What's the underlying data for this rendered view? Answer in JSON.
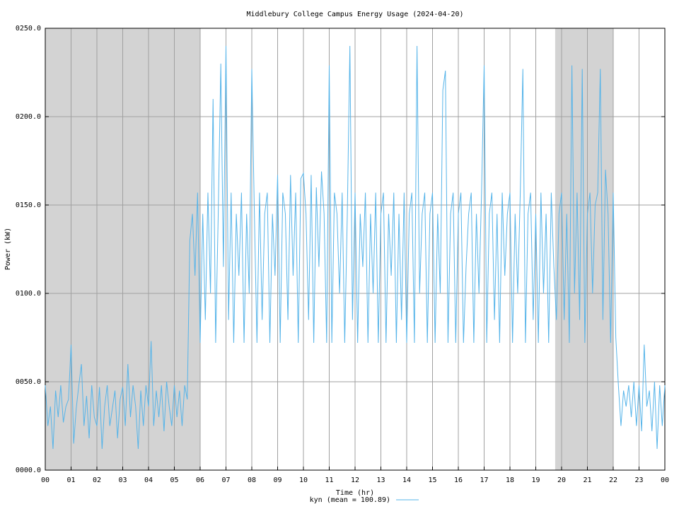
{
  "chart_data": {
    "type": "line",
    "title": "Middlebury College Campus Energy Usage (2024-04-20)",
    "xlabel": "Time (hr)",
    "ylabel": "Power (kW)",
    "xlim": [
      0,
      24
    ],
    "ylim": [
      0,
      250
    ],
    "xticks": [
      {
        "value": 0,
        "label": "00"
      },
      {
        "value": 1,
        "label": "01"
      },
      {
        "value": 2,
        "label": "02"
      },
      {
        "value": 3,
        "label": "03"
      },
      {
        "value": 4,
        "label": "04"
      },
      {
        "value": 5,
        "label": "05"
      },
      {
        "value": 6,
        "label": "06"
      },
      {
        "value": 7,
        "label": "07"
      },
      {
        "value": 8,
        "label": "08"
      },
      {
        "value": 9,
        "label": "09"
      },
      10,
      11,
      12,
      13,
      14,
      15,
      16,
      17,
      18,
      19,
      20,
      21,
      22,
      23,
      {
        "value": 24,
        "label": "00"
      }
    ],
    "yticks": [
      {
        "value": 0,
        "label": "0000.0"
      },
      {
        "value": 50,
        "label": "0050.0"
      },
      {
        "value": 100,
        "label": "0100.0"
      },
      {
        "value": 150,
        "label": "0150.0"
      },
      {
        "value": 200,
        "label": "0200.0"
      },
      {
        "value": 250,
        "label": "0250.0"
      }
    ],
    "grid": true,
    "shaded_regions": [
      [
        0,
        6
      ],
      [
        19.75,
        22
      ]
    ],
    "shade_color": "#d3d3d3",
    "legend": "bottom",
    "x": [
      0,
      0.1,
      0.2,
      0.3,
      0.4,
      0.5,
      0.6,
      0.7,
      0.8,
      0.9,
      1,
      1.1,
      1.2,
      1.3,
      1.4,
      1.5,
      1.6,
      1.7,
      1.8,
      1.9,
      2,
      2.1,
      2.2,
      2.3,
      2.4,
      2.5,
      2.6,
      2.7,
      2.8,
      2.9,
      3,
      3.1,
      3.2,
      3.3,
      3.4,
      3.5,
      3.6,
      3.7,
      3.8,
      3.9,
      4,
      4.1,
      4.2,
      4.3,
      4.4,
      4.5,
      4.6,
      4.7,
      4.8,
      4.9,
      5,
      5.1,
      5.2,
      5.3,
      5.4,
      5.5,
      5.6,
      5.7,
      5.8,
      5.9,
      6,
      6.1,
      6.2,
      6.3,
      6.4,
      6.5,
      6.6,
      6.7,
      6.8,
      6.9,
      7,
      7.1,
      7.2,
      7.3,
      7.4,
      7.5,
      7.6,
      7.7,
      7.8,
      7.9,
      8,
      8.1,
      8.2,
      8.3,
      8.4,
      8.5,
      8.6,
      8.7,
      8.8,
      8.9,
      9,
      9.1,
      9.2,
      9.3,
      9.4,
      9.5,
      9.6,
      9.7,
      9.8,
      9.9,
      10,
      10.1,
      10.2,
      10.3,
      10.4,
      10.5,
      10.6,
      10.7,
      10.8,
      10.9,
      11,
      11.1,
      11.2,
      11.3,
      11.4,
      11.5,
      11.6,
      11.7,
      11.8,
      11.9,
      12,
      12.1,
      12.2,
      12.3,
      12.4,
      12.5,
      12.6,
      12.7,
      12.8,
      12.9,
      13,
      13.1,
      13.2,
      13.3,
      13.4,
      13.5,
      13.6,
      13.7,
      13.8,
      13.9,
      14,
      14.1,
      14.2,
      14.3,
      14.4,
      14.5,
      14.6,
      14.7,
      14.8,
      14.9,
      15,
      15.1,
      15.2,
      15.3,
      15.4,
      15.5,
      15.6,
      15.7,
      15.8,
      15.9,
      16,
      16.1,
      16.2,
      16.3,
      16.4,
      16.5,
      16.6,
      16.7,
      16.8,
      16.9,
      17,
      17.1,
      17.2,
      17.3,
      17.4,
      17.5,
      17.6,
      17.7,
      17.8,
      17.9,
      18,
      18.1,
      18.2,
      18.3,
      18.4,
      18.5,
      18.6,
      18.7,
      18.8,
      18.9,
      19,
      19.1,
      19.2,
      19.3,
      19.4,
      19.5,
      19.6,
      19.7,
      19.8,
      19.9,
      20,
      20.1,
      20.2,
      20.3,
      20.4,
      20.5,
      20.6,
      20.7,
      20.8,
      20.9,
      21,
      21.1,
      21.2,
      21.3,
      21.4,
      21.5,
      21.6,
      21.7,
      21.8,
      21.9,
      22,
      22.1,
      22.2,
      22.3,
      22.4,
      22.5,
      22.6,
      22.7,
      22.8,
      22.9,
      23,
      23.1,
      23.2,
      23.3,
      23.4,
      23.5,
      23.6,
      23.7,
      23.8,
      23.9,
      24
    ],
    "series": [
      {
        "name": "kyn (mean = 100.89)",
        "color": "#56b4e9",
        "values": [
          48,
          25,
          36,
          12,
          45,
          30,
          48,
          27,
          36,
          40,
          71,
          15,
          35,
          48,
          60,
          25,
          42,
          18,
          48,
          30,
          25,
          47,
          12,
          36,
          48,
          25,
          35,
          45,
          18,
          40,
          47,
          25,
          60,
          30,
          48,
          36,
          12,
          45,
          25,
          48,
          36,
          73,
          25,
          45,
          30,
          48,
          22,
          50,
          36,
          25,
          48,
          30,
          45,
          25,
          48,
          40,
          130,
          145,
          110,
          157,
          72,
          145,
          85,
          157,
          100,
          210,
          72,
          145,
          230,
          115,
          240,
          85,
          157,
          72,
          145,
          110,
          157,
          72,
          145,
          100,
          227,
          145,
          72,
          157,
          85,
          145,
          157,
          72,
          145,
          110,
          167,
          72,
          157,
          145,
          85,
          167,
          110,
          157,
          72,
          165,
          168,
          145,
          85,
          167,
          72,
          160,
          115,
          169,
          145,
          72,
          229,
          72,
          157,
          145,
          100,
          157,
          72,
          145,
          240,
          85,
          157,
          72,
          145,
          115,
          157,
          72,
          145,
          100,
          157,
          72,
          145,
          157,
          72,
          145,
          110,
          157,
          72,
          145,
          85,
          157,
          72,
          145,
          157,
          72,
          240,
          100,
          145,
          157,
          72,
          145,
          157,
          72,
          145,
          100,
          215,
          226,
          72,
          145,
          157,
          72,
          145,
          157,
          72,
          115,
          145,
          157,
          72,
          145,
          100,
          157,
          229,
          72,
          145,
          157,
          85,
          145,
          72,
          157,
          110,
          145,
          157,
          72,
          145,
          100,
          157,
          227,
          72,
          145,
          157,
          85,
          145,
          72,
          157,
          100,
          145,
          72,
          157,
          115,
          85,
          145,
          157,
          85,
          145,
          72,
          229,
          100,
          157,
          85,
          227,
          72,
          145,
          157,
          100,
          150,
          157,
          227,
          85,
          170,
          145,
          72,
          157,
          75,
          48,
          25,
          45,
          36,
          48,
          30,
          50,
          25,
          48,
          22,
          71,
          36,
          45,
          22,
          50,
          12,
          48,
          25,
          48
        ]
      }
    ]
  }
}
